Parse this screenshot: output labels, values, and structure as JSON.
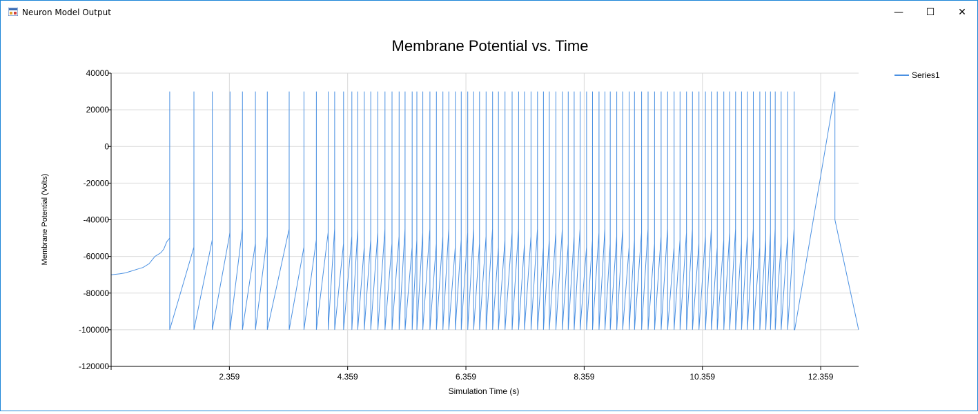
{
  "window": {
    "title": "Neuron Model Output",
    "controls": {
      "minimize": "—",
      "maximize": "☐",
      "close": "✕"
    }
  },
  "colors": {
    "series": "#4a90e2",
    "grid": "#d9d9d9",
    "axis": "#000000",
    "frame": "#1883d7"
  },
  "chart_data": {
    "type": "line",
    "title": "Membrane Potential vs. Time",
    "xlabel": "Simulation Time (s)",
    "ylabel": "Membrane Potential (Volts)",
    "xlim": [
      0.359,
      13.0
    ],
    "ylim": [
      -120000,
      40000
    ],
    "x_ticks": [
      "2.359",
      "4.359",
      "6.359",
      "8.359",
      "10.359",
      "12.359"
    ],
    "y_ticks": [
      "40000",
      "20000",
      "0",
      "-20000",
      "-40000",
      "-60000",
      "-80000",
      "-100000",
      "-120000"
    ],
    "grid": true,
    "legend_position": "top-right",
    "series": [
      {
        "name": "Series1",
        "spike_peak": 30000,
        "reset_value": -100000,
        "initial_segment": {
          "x": [
            0.359,
            0.5,
            0.6,
            0.7,
            0.8,
            0.9,
            1.0,
            1.05,
            1.1,
            1.2,
            1.25,
            1.3,
            1.35
          ],
          "y": [
            -70000,
            -69500,
            -69000,
            -68000,
            -67000,
            -66000,
            -64000,
            -62000,
            -60000,
            -58000,
            -56000,
            -52000,
            -50000
          ]
        },
        "spike_times": [
          1.35,
          1.76,
          2.07,
          2.37,
          2.58,
          2.8,
          3.0,
          3.37,
          3.62,
          3.83,
          4.03,
          4.14,
          4.29,
          4.43,
          4.53,
          4.64,
          4.75,
          4.87,
          4.99,
          5.11,
          5.23,
          5.33,
          5.45,
          5.53,
          5.63,
          5.75,
          5.86,
          5.97,
          6.07,
          6.18,
          6.28,
          6.39,
          6.49,
          6.59,
          6.7,
          6.81,
          6.91,
          7.02,
          7.14,
          7.25,
          7.35,
          7.46,
          7.57,
          7.67,
          7.77,
          7.88,
          7.99,
          8.09,
          8.19,
          8.29,
          8.4,
          8.5,
          8.61,
          8.71,
          8.8,
          8.91,
          9.01,
          9.12,
          9.21,
          9.33,
          9.44,
          9.55,
          9.66,
          9.77,
          9.88,
          9.98,
          10.09,
          10.19,
          10.3,
          10.41,
          10.51,
          10.61,
          10.72,
          10.82,
          10.92,
          11.02,
          11.12,
          11.22,
          11.33,
          11.43,
          11.51,
          11.59,
          11.69,
          11.8,
          11.91
        ],
        "final_ramp": {
          "x": [
            11.92,
            12.6,
            12.6,
            13.0
          ],
          "y": [
            -100000,
            30000,
            -40000,
            -100000
          ]
        }
      }
    ]
  }
}
